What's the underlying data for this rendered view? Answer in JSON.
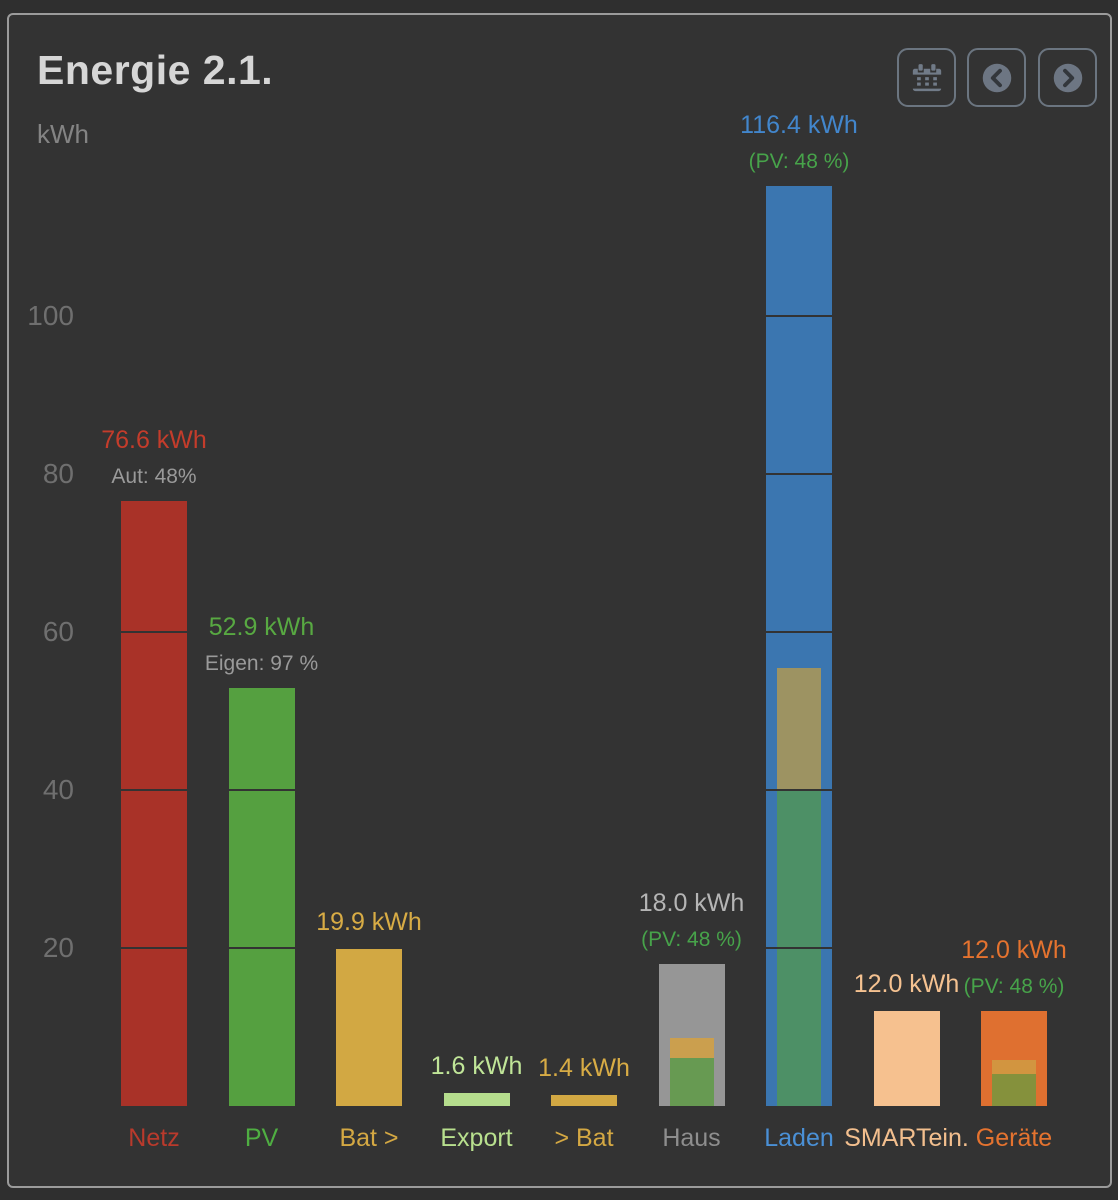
{
  "header": {
    "title": "Energie 2.1.",
    "buttons": {
      "calendar_icon": "calendar-icon",
      "prev_icon": "chevron-left-circle-icon",
      "next_icon": "chevron-right-circle-icon"
    }
  },
  "colors": {
    "card_background": "#333333",
    "card_border": "#9b9b9b",
    "title_text": "#d6d6d6",
    "axis_text": "#6f6f6f",
    "button_border": "#6b7580",
    "button_icon": "#717b88",
    "pv_subtitle_green": "#47a34a",
    "gray_subtitle": "#9a9a9a"
  },
  "chart_data": {
    "type": "bar",
    "title": "Energie 2.1.",
    "ylabel": "kWh",
    "unit": "kWh",
    "ylim": [
      0,
      140
    ],
    "yticks": [
      20,
      40,
      60,
      80,
      100
    ],
    "grid": "dark-lines-over-bars",
    "legend": "none",
    "bars": [
      {
        "key": "netz",
        "label": "Netz",
        "value": 76.6,
        "value_label": "76.6 kWh",
        "subtitle": "Aut: 48%",
        "subtitle_color": "#9a9a9a",
        "color": "#a93228",
        "value_color": "#c43c2b",
        "label_color": "#b93a2c"
      },
      {
        "key": "pv",
        "label": "PV",
        "value": 52.9,
        "value_label": "52.9 kWh",
        "subtitle": "Eigen: 97 %",
        "subtitle_color": "#9a9a9a",
        "color": "#55a040",
        "value_color": "#58a942",
        "label_color": "#4fae42"
      },
      {
        "key": "bat-out",
        "label": "Bat >",
        "value": 19.9,
        "value_label": "19.9 kWh",
        "subtitle": null,
        "subtitle_color": null,
        "color": "#d2a843",
        "value_color": "#d8ac45",
        "label_color": "#d4a843"
      },
      {
        "key": "export",
        "label": "Export",
        "value": 1.6,
        "value_label": "1.6 kWh",
        "subtitle": null,
        "subtitle_color": null,
        "color": "#b5dd8d",
        "value_color": "#c0e598",
        "label_color": "#b8e08e"
      },
      {
        "key": "bat-in",
        "label": "> Bat",
        "value": 1.4,
        "value_label": "1.4 kWh",
        "subtitle": null,
        "subtitle_color": null,
        "color": "#d2a843",
        "value_color": "#d8ac45",
        "label_color": "#d4a843"
      },
      {
        "key": "haus",
        "label": "Haus",
        "value": 18.0,
        "value_label": "18.0 kWh",
        "subtitle": "(PV: 48 %)",
        "subtitle_color": "#47a34a",
        "color": "#969696",
        "value_color": "#b5b5b5",
        "label_color": "#8e8e8e",
        "overlay": [
          {
            "name": "pv-direct",
            "from": 0,
            "to": 6.1,
            "color": "#679a52"
          },
          {
            "name": "battery",
            "from": 6.1,
            "to": 8.64,
            "color": "#cb9f4e"
          }
        ]
      },
      {
        "key": "laden",
        "label": "Laden",
        "value": 116.4,
        "value_label": "116.4 kWh",
        "subtitle": "(PV: 48 %)",
        "subtitle_color": "#47a34a",
        "color": "#3b76b0",
        "value_color": "#4286cc",
        "label_color": "#4a90d6",
        "overlay": [
          {
            "name": "pv-direct",
            "from": 0,
            "to": 40,
            "color": "#4d9066"
          },
          {
            "name": "battery",
            "from": 40,
            "to": 55.4,
            "color": "#9d9362"
          }
        ]
      },
      {
        "key": "smartein",
        "label": "SMARTein.",
        "value": 12.0,
        "value_label": "12.0 kWh",
        "subtitle": null,
        "subtitle_color": null,
        "color": "#f6c18f",
        "value_color": "#f5c291",
        "label_color": "#f3bf8e"
      },
      {
        "key": "geraete",
        "label": "Geräte",
        "value": 12.0,
        "value_label": "12.0 kWh",
        "subtitle": "(PV: 48 %)",
        "subtitle_color": "#47a34a",
        "color": "#df7030",
        "value_color": "#e5732f",
        "label_color": "#e5732f",
        "overlay": [
          {
            "name": "pv-direct",
            "from": 0,
            "to": 4.1,
            "color": "#85913c"
          },
          {
            "name": "battery",
            "from": 4.1,
            "to": 5.76,
            "color": "#d29540"
          }
        ]
      }
    ]
  }
}
